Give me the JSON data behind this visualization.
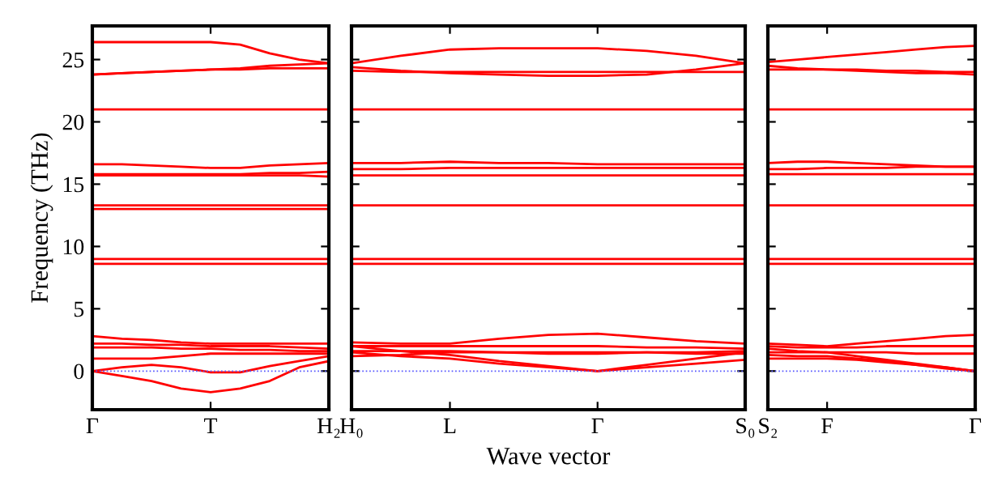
{
  "chart_data": [
    {
      "type": "line",
      "ylabel": "Frequency (THz)",
      "ylim": [
        -3.1,
        27.7
      ],
      "yticks": [
        0,
        5,
        10,
        15,
        20,
        25
      ],
      "categories": [
        "Γ",
        null,
        null,
        null,
        "T",
        null,
        null,
        null,
        "H₂"
      ],
      "grid": false,
      "marker": "none",
      "line_style": "solid",
      "ref_lines": [
        {
          "axis": "y",
          "value": 0,
          "color": "#5555ff",
          "line_style": "dotted"
        }
      ],
      "series": [
        {
          "color": "#ff0000",
          "values": [
            26.4,
            26.4,
            26.4,
            26.4,
            26.4,
            26.2,
            25.5,
            25.0,
            24.7
          ]
        },
        {
          "color": "#ff0000",
          "values": [
            23.8,
            23.9,
            24.0,
            24.1,
            24.2,
            24.3,
            24.5,
            24.6,
            24.7
          ]
        },
        {
          "color": "#ff0000",
          "values": [
            23.8,
            23.9,
            24.0,
            24.1,
            24.2,
            24.2,
            24.3,
            24.3,
            24.3
          ]
        },
        {
          "color": "#ff0000",
          "values": [
            21.0,
            21.0,
            21.0,
            21.0,
            21.0,
            21.0,
            21.0,
            21.0,
            21.0
          ]
        },
        {
          "color": "#ff0000",
          "values": [
            16.6,
            16.6,
            16.5,
            16.4,
            16.3,
            16.3,
            16.5,
            16.6,
            16.7
          ]
        },
        {
          "color": "#ff0000",
          "values": [
            15.8,
            15.8,
            15.8,
            15.8,
            15.8,
            15.8,
            15.9,
            15.9,
            16.0
          ]
        },
        {
          "color": "#ff0000",
          "values": [
            15.7,
            15.7,
            15.7,
            15.7,
            15.7,
            15.7,
            15.7,
            15.7,
            15.6
          ]
        },
        {
          "color": "#ff0000",
          "values": [
            13.3,
            13.3,
            13.3,
            13.3,
            13.3,
            13.3,
            13.3,
            13.3,
            13.3
          ]
        },
        {
          "color": "#ff0000",
          "values": [
            13.0,
            13.0,
            13.0,
            13.0,
            13.0,
            13.0,
            13.0,
            13.0,
            13.0
          ]
        },
        {
          "color": "#ff0000",
          "values": [
            9.0,
            9.0,
            9.0,
            9.0,
            9.0,
            9.0,
            9.0,
            9.0,
            9.0
          ]
        },
        {
          "color": "#ff0000",
          "values": [
            8.6,
            8.6,
            8.6,
            8.6,
            8.6,
            8.6,
            8.6,
            8.6,
            8.6
          ]
        },
        {
          "color": "#ff0000",
          "values": [
            2.8,
            2.6,
            2.5,
            2.3,
            2.2,
            2.2,
            2.2,
            2.2,
            2.2
          ]
        },
        {
          "color": "#ff0000",
          "values": [
            2.2,
            2.2,
            2.1,
            2.1,
            2.0,
            2.0,
            2.0,
            1.9,
            1.8
          ]
        },
        {
          "color": "#ff0000",
          "values": [
            1.9,
            1.9,
            1.9,
            1.8,
            1.8,
            1.7,
            1.7,
            1.6,
            1.6
          ]
        },
        {
          "color": "#ff0000",
          "values": [
            1.0,
            1.0,
            1.0,
            1.2,
            1.4,
            1.4,
            1.4,
            1.4,
            1.4
          ]
        },
        {
          "color": "#ff0000",
          "values": [
            0.0,
            0.3,
            0.5,
            0.3,
            -0.1,
            -0.1,
            0.4,
            0.8,
            1.2
          ]
        },
        {
          "color": "#ff0000",
          "values": [
            0.0,
            -0.4,
            -0.8,
            -1.4,
            -1.7,
            -1.4,
            -0.8,
            0.3,
            0.8
          ]
        }
      ]
    },
    {
      "type": "line",
      "xlabel": "Wave vector",
      "ylim": [
        -3.1,
        27.7
      ],
      "yticks": [
        0,
        5,
        10,
        15,
        20,
        25
      ],
      "categories": [
        "H₀",
        null,
        "L",
        null,
        null,
        "Γ",
        null,
        null,
        "S₀"
      ],
      "grid": false,
      "marker": "none",
      "line_style": "solid",
      "tick_labels": "x",
      "ref_lines": [
        {
          "axis": "y",
          "value": 0,
          "color": "#5555ff",
          "line_style": "dotted"
        }
      ],
      "series": [
        {
          "color": "#ff0000",
          "values": [
            24.7,
            25.3,
            25.8,
            25.9,
            25.9,
            25.9,
            25.7,
            25.3,
            24.7
          ]
        },
        {
          "color": "#ff0000",
          "values": [
            24.4,
            24.1,
            23.9,
            23.8,
            23.7,
            23.7,
            23.8,
            24.2,
            24.7
          ]
        },
        {
          "color": "#ff0000",
          "values": [
            24.1,
            24.0,
            24.0,
            24.0,
            24.0,
            24.0,
            24.0,
            24.0,
            24.0
          ]
        },
        {
          "color": "#ff0000",
          "values": [
            21.0,
            21.0,
            21.0,
            21.0,
            21.0,
            21.0,
            21.0,
            21.0,
            21.0
          ]
        },
        {
          "color": "#ff0000",
          "values": [
            16.7,
            16.7,
            16.8,
            16.7,
            16.7,
            16.6,
            16.6,
            16.6,
            16.6
          ]
        },
        {
          "color": "#ff0000",
          "values": [
            16.2,
            16.2,
            16.3,
            16.3,
            16.3,
            16.3,
            16.3,
            16.3,
            16.3
          ]
        },
        {
          "color": "#ff0000",
          "values": [
            15.7,
            15.7,
            15.7,
            15.7,
            15.7,
            15.7,
            15.7,
            15.7,
            15.7
          ]
        },
        {
          "color": "#ff0000",
          "values": [
            13.3,
            13.3,
            13.3,
            13.3,
            13.3,
            13.3,
            13.3,
            13.3,
            13.3
          ]
        },
        {
          "color": "#ff0000",
          "values": [
            9.0,
            9.0,
            9.0,
            9.0,
            9.0,
            9.0,
            9.0,
            9.0,
            9.0
          ]
        },
        {
          "color": "#ff0000",
          "values": [
            8.6,
            8.6,
            8.6,
            8.6,
            8.6,
            8.6,
            8.6,
            8.6,
            8.6
          ]
        },
        {
          "color": "#ff0000",
          "values": [
            2.3,
            2.2,
            2.2,
            2.6,
            2.9,
            3.0,
            2.7,
            2.4,
            2.2
          ]
        },
        {
          "color": "#ff0000",
          "values": [
            2.0,
            2.0,
            2.0,
            2.0,
            2.0,
            2.0,
            1.9,
            1.9,
            1.8
          ]
        },
        {
          "color": "#ff0000",
          "values": [
            1.6,
            1.6,
            1.6,
            1.5,
            1.5,
            1.5,
            1.5,
            1.4,
            1.4
          ]
        },
        {
          "color": "#ff0000",
          "values": [
            1.2,
            1.3,
            1.5,
            1.5,
            1.4,
            1.4,
            1.5,
            1.5,
            1.6
          ]
        },
        {
          "color": "#ff0000",
          "values": [
            2.0,
            1.6,
            1.3,
            0.8,
            0.4,
            0.0,
            0.5,
            1.0,
            1.5
          ]
        },
        {
          "color": "#ff0000",
          "values": [
            1.5,
            1.2,
            1.0,
            0.6,
            0.3,
            0.0,
            0.3,
            0.6,
            0.9
          ]
        }
      ]
    },
    {
      "type": "line",
      "ylim": [
        -3.1,
        27.7
      ],
      "yticks": [
        0,
        5,
        10,
        15,
        20,
        25
      ],
      "categories": [
        "S₂",
        null,
        "F",
        null,
        null,
        null,
        null,
        "Γ"
      ],
      "grid": false,
      "marker": "none",
      "line_style": "solid",
      "tick_labels": "x",
      "ref_lines": [
        {
          "axis": "y",
          "value": 0,
          "color": "#5555ff",
          "line_style": "dotted"
        }
      ],
      "series": [
        {
          "color": "#ff0000",
          "values": [
            24.8,
            25.0,
            25.2,
            25.4,
            25.6,
            25.8,
            26.0,
            26.1
          ]
        },
        {
          "color": "#ff0000",
          "values": [
            24.5,
            24.3,
            24.2,
            24.1,
            24.0,
            23.9,
            23.9,
            23.8
          ]
        },
        {
          "color": "#ff0000",
          "values": [
            24.2,
            24.2,
            24.2,
            24.2,
            24.1,
            24.1,
            24.0,
            24.0
          ]
        },
        {
          "color": "#ff0000",
          "values": [
            21.0,
            21.0,
            21.0,
            21.0,
            21.0,
            21.0,
            21.0,
            21.0
          ]
        },
        {
          "color": "#ff0000",
          "values": [
            16.7,
            16.8,
            16.8,
            16.7,
            16.6,
            16.5,
            16.4,
            16.4
          ]
        },
        {
          "color": "#ff0000",
          "values": [
            16.2,
            16.2,
            16.3,
            16.3,
            16.3,
            16.4,
            16.4,
            16.4
          ]
        },
        {
          "color": "#ff0000",
          "values": [
            15.8,
            15.8,
            15.8,
            15.8,
            15.8,
            15.8,
            15.8,
            15.8
          ]
        },
        {
          "color": "#ff0000",
          "values": [
            13.3,
            13.3,
            13.3,
            13.3,
            13.3,
            13.3,
            13.3,
            13.3
          ]
        },
        {
          "color": "#ff0000",
          "values": [
            9.0,
            9.0,
            9.0,
            9.0,
            9.0,
            9.0,
            9.0,
            9.0
          ]
        },
        {
          "color": "#ff0000",
          "values": [
            8.6,
            8.6,
            8.6,
            8.6,
            8.6,
            8.6,
            8.6,
            8.6
          ]
        },
        {
          "color": "#ff0000",
          "values": [
            2.2,
            2.1,
            2.0,
            2.2,
            2.4,
            2.6,
            2.8,
            2.9
          ]
        },
        {
          "color": "#ff0000",
          "values": [
            2.0,
            1.9,
            1.9,
            1.9,
            2.0,
            2.0,
            2.0,
            2.0
          ]
        },
        {
          "color": "#ff0000",
          "values": [
            1.5,
            1.5,
            1.5,
            1.5,
            1.5,
            1.4,
            1.4,
            1.4
          ]
        },
        {
          "color": "#ff0000",
          "values": [
            1.3,
            1.2,
            1.2,
            1.0,
            0.8,
            0.5,
            0.3,
            0.0
          ]
        },
        {
          "color": "#ff0000",
          "values": [
            1.0,
            1.0,
            1.0,
            0.9,
            0.7,
            0.5,
            0.2,
            0.0
          ]
        },
        {
          "color": "#ff0000",
          "values": [
            1.8,
            1.6,
            1.5,
            1.2,
            0.9,
            0.6,
            0.3,
            0.0
          ]
        }
      ]
    }
  ]
}
